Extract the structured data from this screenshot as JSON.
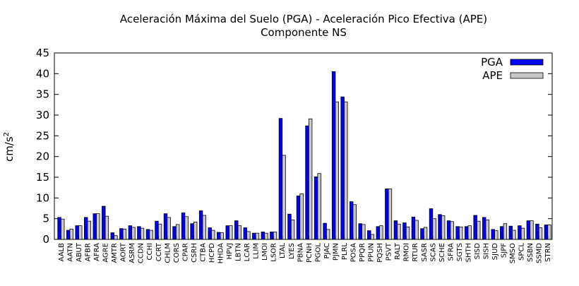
{
  "chart_data": {
    "type": "bar",
    "title": "Aceleración Máxima del Suelo (PGA) -  Aceleración Pico Efectiva (APE)",
    "subtitle": "Componente NS",
    "xlabel": "",
    "ylabel": "cm/s",
    "ylabel_superscript": "2",
    "ylim": [
      0,
      45
    ],
    "yticks": [
      "0",
      "5",
      "10",
      "15",
      "20",
      "25",
      "30",
      "35",
      "40",
      "45"
    ],
    "legend_position": "top-right",
    "grid": false,
    "categories": [
      "AALB",
      "AATN",
      "ABUT",
      "AFBR",
      "AFRA",
      "AGRE",
      "AMTR",
      "AORT",
      "ASRM",
      "CCDN",
      "CCHI",
      "CCRT",
      "CHLM",
      "CORS",
      "CPAR",
      "CSRH",
      "CTBA",
      "HCPD",
      "HHDA",
      "HPVJ",
      "LBTN",
      "LCAR",
      "LLIM",
      "LMOI",
      "LSOR",
      "LTAL",
      "LYES",
      "PBNA",
      "PCNH",
      "PGOL",
      "PJAC",
      "PJMN",
      "PLRL",
      "POSA",
      "PPQR",
      "PPUN",
      "PQSH",
      "PSVT",
      "RALT",
      "RMOI",
      "RTUR",
      "SASR",
      "SCAS",
      "SCHE",
      "SFRA",
      "SGTS",
      "SHTH",
      "SISD",
      "SISH",
      "SJUD",
      "SJPF",
      "SMSO",
      "SPCL",
      "SSBN",
      "SSMD",
      "STRN"
    ],
    "series": [
      {
        "name": "PGA",
        "color": "#0000ff",
        "values": [
          5.3,
          2.2,
          3.3,
          5.3,
          6.2,
          8.0,
          1.6,
          2.6,
          3.3,
          3.1,
          2.4,
          4.4,
          6.2,
          3.1,
          6.4,
          3.8,
          6.9,
          2.8,
          1.7,
          3.3,
          4.5,
          2.8,
          1.5,
          1.8,
          1.8,
          29.2,
          6.1,
          10.5,
          27.4,
          15.1,
          3.9,
          40.5,
          34.4,
          9.1,
          3.8,
          2.1,
          3.1,
          12.2,
          4.5,
          4.0,
          5.4,
          2.6,
          7.4,
          6.0,
          4.5,
          3.1,
          3.1,
          5.8,
          5.3,
          2.4,
          3.1,
          3.2,
          3.3,
          4.5,
          3.7,
          3.5
        ]
      },
      {
        "name": "APE",
        "color": "#c8c8c8",
        "values": [
          4.9,
          2.5,
          3.3,
          4.4,
          6.2,
          5.6,
          0.9,
          2.5,
          2.9,
          2.7,
          2.2,
          3.7,
          5.3,
          3.6,
          5.5,
          4.2,
          5.8,
          2.2,
          1.6,
          3.3,
          3.3,
          1.9,
          1.5,
          1.5,
          1.8,
          20.3,
          4.7,
          11.0,
          29.1,
          15.9,
          2.4,
          33.2,
          33.2,
          8.4,
          3.6,
          1.2,
          3.3,
          12.2,
          3.7,
          3.0,
          4.6,
          2.9,
          5.0,
          5.7,
          4.3,
          3.0,
          3.3,
          4.4,
          4.7,
          2.1,
          3.8,
          2.2,
          2.7,
          4.5,
          2.8,
          3.5
        ]
      }
    ]
  }
}
